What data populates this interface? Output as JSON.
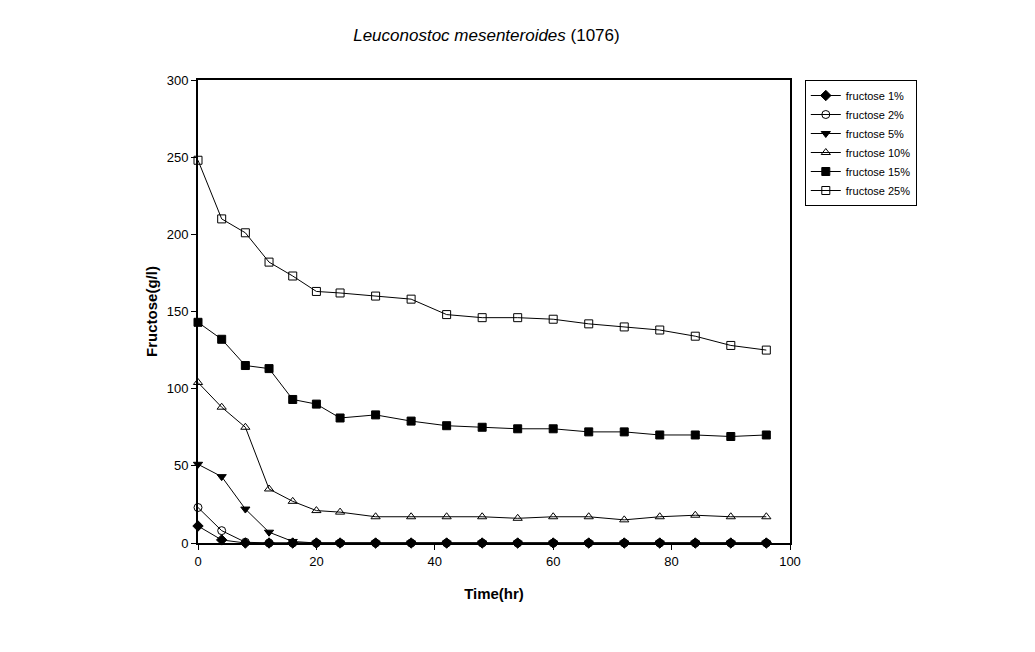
{
  "chart_data": {
    "type": "line",
    "title": "Leuconostoc mesenteroides (1076)",
    "x_label": "Time(hr)",
    "y_label": "Fructose(g/l)",
    "x": [
      0,
      4,
      8,
      12,
      16,
      20,
      24,
      30,
      36,
      42,
      48,
      54,
      60,
      66,
      72,
      78,
      84,
      90,
      96
    ],
    "series": [
      {
        "name": "fructose 1%",
        "color": "#000000",
        "marker": "diamond",
        "values": [
          11,
          2,
          0,
          0,
          0,
          0,
          0,
          0,
          0,
          0,
          0,
          0,
          0,
          0,
          0,
          0,
          0,
          0,
          0
        ]
      },
      {
        "name": "fructose 2%",
        "color": "#000000",
        "marker": "circle-open",
        "values": [
          23,
          8,
          0.5,
          0,
          0,
          0,
          0,
          0,
          0,
          0,
          0,
          0,
          0,
          0,
          0,
          0,
          0,
          0,
          0
        ]
      },
      {
        "name": "fructose 5%",
        "color": "#000000",
        "marker": "triangle-down",
        "values": [
          51,
          43,
          22,
          7,
          1,
          0,
          0,
          0,
          0,
          0,
          0,
          0,
          0,
          0,
          0,
          0,
          0,
          0,
          0
        ]
      },
      {
        "name": "fructose 10%",
        "color": "#000000",
        "marker": "triangle-up-open",
        "values": [
          104,
          88,
          75,
          35,
          27,
          21,
          20,
          17,
          17,
          17,
          17,
          16,
          17,
          17,
          15,
          17,
          18,
          17,
          17
        ]
      },
      {
        "name": "fructose 15%",
        "color": "#000000",
        "marker": "square",
        "values": [
          143,
          132,
          115,
          113,
          93,
          90,
          81,
          83,
          79,
          76,
          75,
          74,
          74,
          72,
          72,
          70,
          70,
          69,
          70
        ]
      },
      {
        "name": "fructose 25%",
        "color": "#000000",
        "marker": "square-open",
        "values": [
          248,
          210,
          201,
          182,
          173,
          163,
          162,
          160,
          158,
          148,
          146,
          146,
          145,
          142,
          140,
          138,
          134,
          128,
          125
        ]
      }
    ],
    "xlim": [
      0,
      100
    ],
    "xticks": [
      0,
      20,
      40,
      60,
      80,
      100
    ],
    "ylim": [
      0,
      300
    ],
    "yticks": [
      0,
      50,
      100,
      150,
      200,
      250,
      300
    ],
    "grid": false,
    "legend": "right"
  }
}
